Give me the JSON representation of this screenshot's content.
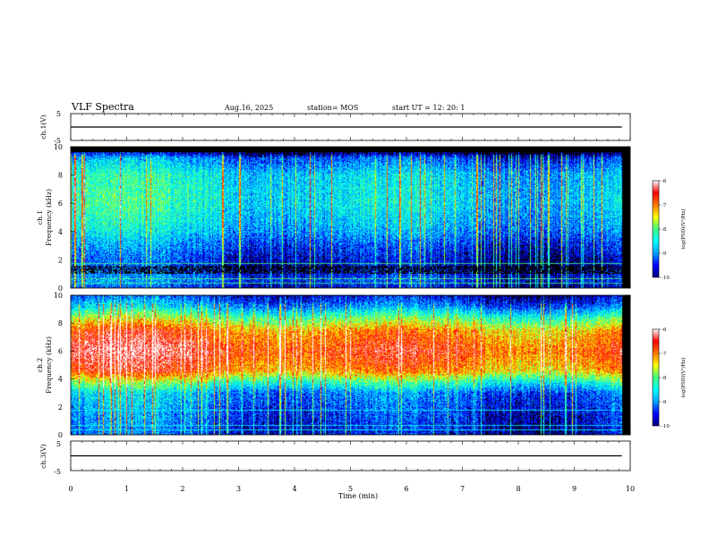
{
  "header": {
    "title": "VLF Spectra",
    "date": "Aug.16, 2025",
    "station": "station= MOS",
    "start": "start  UT =   12: 20: 1"
  },
  "chart_data": [
    {
      "type": "line",
      "name": "ch1-waveform",
      "ylabel": "ch.1(V)",
      "ylim": [
        -5,
        5
      ],
      "yticks": [
        5,
        -5
      ],
      "xlim": [
        0,
        10
      ],
      "trace_level": 0
    },
    {
      "type": "heatmap",
      "name": "ch1-spectrogram",
      "ylabel_channel": "ch.1",
      "ylabel": "Frequency (kHz)",
      "ylim": [
        0,
        10
      ],
      "yticks": [
        0,
        2,
        4,
        6,
        8,
        10
      ],
      "xlim": [
        0,
        10
      ],
      "data_end_min": 9.85,
      "colorbar": {
        "label": "log(PSD)(V²/Hz)",
        "range": [
          -10,
          -6
        ],
        "ticks": [
          -6,
          -7,
          -8,
          -9,
          -10
        ]
      },
      "profile": [
        {
          "kHz": 0.0,
          "level": -9.6
        },
        {
          "kHz": 0.5,
          "level": -9.3
        },
        {
          "kHz": 1.6,
          "level": -9.6
        },
        {
          "kHz": 2.2,
          "level": -9.5
        },
        {
          "kHz": 3.2,
          "level": -9.2
        },
        {
          "kHz": 4.2,
          "level": -8.8
        },
        {
          "kHz": 6.0,
          "level": -8.5
        },
        {
          "kHz": 8.0,
          "level": -8.6
        },
        {
          "kHz": 9.2,
          "level": -9.2
        },
        {
          "kHz": 9.6,
          "level": -10.0
        },
        {
          "kHz": 10.0,
          "level": -10.0
        }
      ]
    },
    {
      "type": "heatmap",
      "name": "ch2-spectrogram",
      "ylabel_channel": "ch.2",
      "ylabel": "Frequency (kHz)",
      "ylim": [
        0,
        10
      ],
      "yticks": [
        0,
        2,
        4,
        6,
        8,
        10
      ],
      "xlim": [
        0,
        10
      ],
      "data_end_min": 9.85,
      "colorbar": {
        "label": "log(PSD)(V²/Hz)",
        "range": [
          -10,
          -6
        ],
        "ticks": [
          -6,
          -7,
          -8,
          -9,
          -10
        ]
      },
      "profile": [
        {
          "kHz": 0.0,
          "level": -9.5
        },
        {
          "kHz": 1.5,
          "level": -9.3
        },
        {
          "kHz": 3.0,
          "level": -9.0
        },
        {
          "kHz": 3.8,
          "level": -8.1
        },
        {
          "kHz": 4.6,
          "level": -7.0
        },
        {
          "kHz": 6.0,
          "level": -6.6
        },
        {
          "kHz": 7.4,
          "level": -7.0
        },
        {
          "kHz": 8.4,
          "level": -8.0
        },
        {
          "kHz": 9.2,
          "level": -9.0
        },
        {
          "kHz": 10.0,
          "level": -9.6
        }
      ]
    },
    {
      "type": "line",
      "name": "ch3-waveform",
      "ylabel": "ch.3(V)",
      "ylim": [
        -5,
        5
      ],
      "yticks": [
        5,
        -5
      ],
      "xlim": [
        0,
        10
      ],
      "trace_level": 0
    }
  ],
  "xaxis": {
    "label": "Time (min)",
    "ticks": [
      0,
      1,
      2,
      3,
      4,
      5,
      6,
      7,
      8,
      9,
      10
    ]
  },
  "colors": {
    "colormap": [
      "#000080",
      "#0000ff",
      "#00a0ff",
      "#00ffff",
      "#40ff80",
      "#ffff00",
      "#ff7800",
      "#ff0000",
      "#ffffff"
    ],
    "trace": "#000000"
  }
}
